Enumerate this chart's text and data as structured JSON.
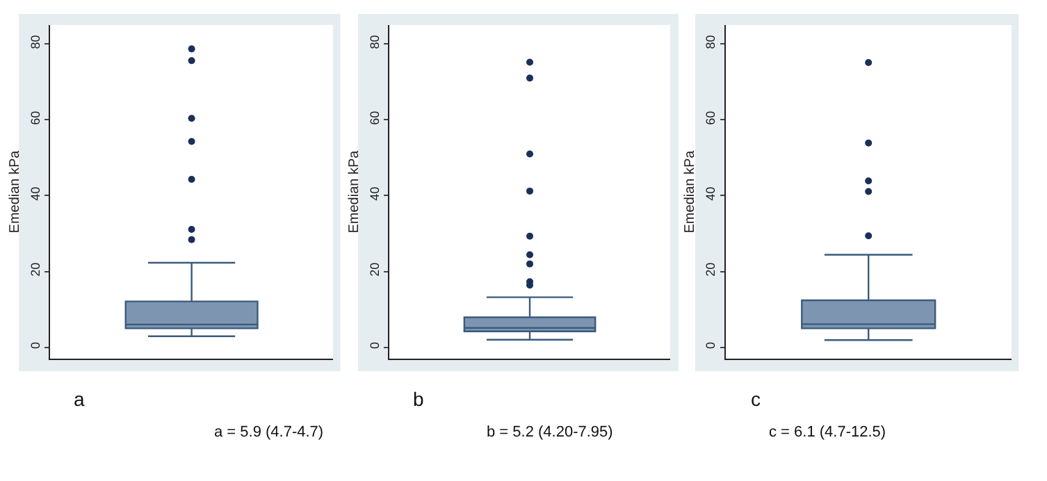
{
  "chart_data": [
    {
      "type": "box",
      "categories": [
        null
      ],
      "ylabel": "Emedian kPa",
      "ylim": [
        -3,
        85
      ],
      "yticks": [
        0,
        20,
        40,
        60,
        80
      ],
      "grid": false,
      "tick_labels": "y",
      "color": "#7d95b0",
      "boxes": [
        {
          "low": 2.9,
          "q1": 5,
          "median": 6,
          "q3": 12.1,
          "high": 22.3,
          "outliers": [
            28.4,
            31.1,
            44.3,
            54.3,
            60.4,
            75.6,
            78.7
          ]
        }
      ],
      "annotations": [
        "a",
        "a = 5.9 (4.7-4.7)"
      ]
    },
    {
      "type": "box",
      "categories": [
        null
      ],
      "ylabel": "Emedian kPa",
      "ylim": [
        -3,
        85
      ],
      "yticks": [
        0,
        20,
        40,
        60,
        80
      ],
      "grid": false,
      "tick_labels": "y",
      "color": "#7d95b0",
      "boxes": [
        {
          "low": 2,
          "q1": 4.2,
          "median": 5.1,
          "q3": 7.9,
          "high": 13.2,
          "outliers": [
            16.4,
            17.3,
            22,
            24.4,
            29.3,
            41.2,
            51,
            71,
            75.2
          ]
        }
      ],
      "annotations": [
        "b",
        "b = 5.2 (4.20-7.95)"
      ]
    },
    {
      "type": "box",
      "categories": [
        null
      ],
      "ylabel": "Emedian kPa",
      "ylim": [
        -3,
        85
      ],
      "yticks": [
        0,
        20,
        40,
        60,
        80
      ],
      "grid": false,
      "tick_labels": "y",
      "color": "#7d95b0",
      "boxes": [
        {
          "low": 1.9,
          "q1": 5,
          "median": 6.1,
          "q3": 12.4,
          "high": 24.4,
          "outliers": [
            29.4,
            41.1,
            43.9,
            53.9,
            75.1
          ]
        }
      ],
      "annotations": [
        "c",
        "c = 6.1 (4.7-12.5)"
      ]
    }
  ]
}
